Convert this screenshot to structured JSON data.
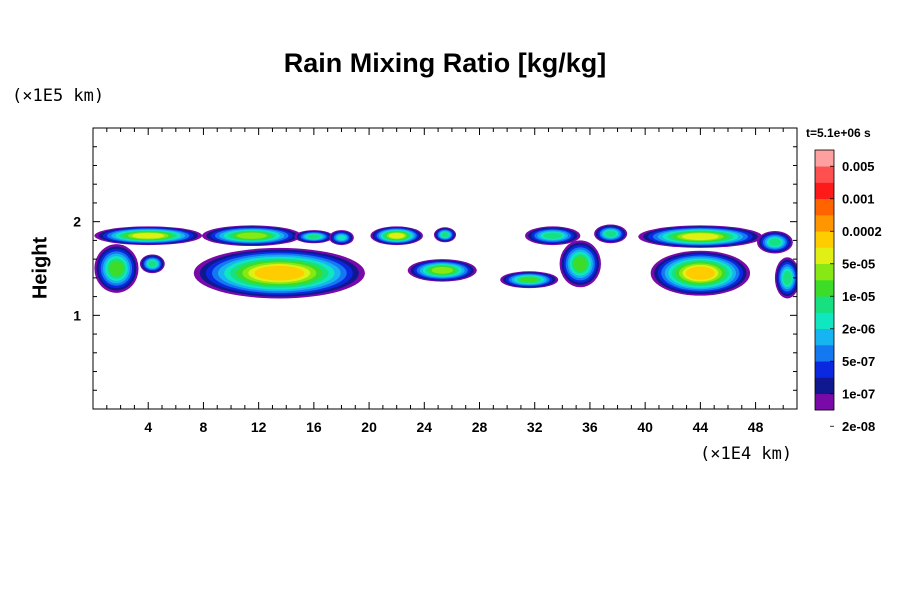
{
  "chart_data": {
    "type": "heatmap",
    "title": "Rain Mixing Ratio [kg/kg]",
    "ylabel": "Height",
    "x_unit": "(×1E4 km)",
    "y_unit": "(×1E5 km)",
    "time_label": "t=5.1e+06 s",
    "xlim": [
      0,
      51
    ],
    "ylim": [
      0,
      3
    ],
    "x_ticks": [
      4,
      8,
      12,
      16,
      20,
      24,
      28,
      32,
      36,
      40,
      44,
      48
    ],
    "x_tick_labels": [
      "4",
      "8",
      "12",
      "16",
      "20",
      "24",
      "28",
      "32",
      "36",
      "40",
      "44",
      "48"
    ],
    "y_ticks": [
      1,
      2
    ],
    "y_tick_labels": [
      "1",
      "2"
    ],
    "colorbar": {
      "labels": [
        "0.005",
        "0.001",
        "0.0002",
        "5e-05",
        "1e-05",
        "2e-06",
        "5e-07",
        "1e-07",
        "2e-08"
      ],
      "colors": [
        "#7a0aa8",
        "#101890",
        "#0a28e0",
        "#1478f0",
        "#16b4f0",
        "#10e6c0",
        "#16e080",
        "#3cdc28",
        "#88e814",
        "#e0f014",
        "#ffcc00",
        "#ff9600",
        "#ff6400",
        "#ff1a1a",
        "#ff5050",
        "#ffa0a0"
      ]
    },
    "cells": [
      {
        "x": 4,
        "y": 1.85,
        "rx": 3.9,
        "ry": 0.1,
        "level": 9
      },
      {
        "x": 11.5,
        "y": 1.85,
        "rx": 3.6,
        "ry": 0.11,
        "level": 8
      },
      {
        "x": 16,
        "y": 1.84,
        "rx": 1.4,
        "ry": 0.07,
        "level": 6
      },
      {
        "x": 18,
        "y": 1.83,
        "rx": 0.9,
        "ry": 0.08,
        "level": 5
      },
      {
        "x": 22,
        "y": 1.85,
        "rx": 1.9,
        "ry": 0.1,
        "level": 9
      },
      {
        "x": 25.5,
        "y": 1.86,
        "rx": 0.8,
        "ry": 0.08,
        "level": 6
      },
      {
        "x": 1.7,
        "y": 1.5,
        "rx": 1.6,
        "ry": 0.26,
        "level": 7
      },
      {
        "x": 4.3,
        "y": 1.55,
        "rx": 0.9,
        "ry": 0.1,
        "level": 6
      },
      {
        "x": 13.5,
        "y": 1.45,
        "rx": 6.2,
        "ry": 0.27,
        "level": 10
      },
      {
        "x": 25.3,
        "y": 1.48,
        "rx": 2.5,
        "ry": 0.12,
        "level": 8
      },
      {
        "x": 31.6,
        "y": 1.38,
        "rx": 2.1,
        "ry": 0.09,
        "level": 7
      },
      {
        "x": 33.3,
        "y": 1.85,
        "rx": 2.0,
        "ry": 0.1,
        "level": 6
      },
      {
        "x": 35.3,
        "y": 1.55,
        "rx": 1.5,
        "ry": 0.25,
        "level": 7
      },
      {
        "x": 37.5,
        "y": 1.87,
        "rx": 1.2,
        "ry": 0.1,
        "level": 6
      },
      {
        "x": 44,
        "y": 1.84,
        "rx": 4.5,
        "ry": 0.12,
        "level": 9
      },
      {
        "x": 44,
        "y": 1.45,
        "rx": 3.6,
        "ry": 0.24,
        "level": 10
      },
      {
        "x": 49.4,
        "y": 1.78,
        "rx": 1.3,
        "ry": 0.12,
        "level": 6
      },
      {
        "x": 50.3,
        "y": 1.4,
        "rx": 0.9,
        "ry": 0.22,
        "level": 6
      }
    ],
    "grid": false
  }
}
